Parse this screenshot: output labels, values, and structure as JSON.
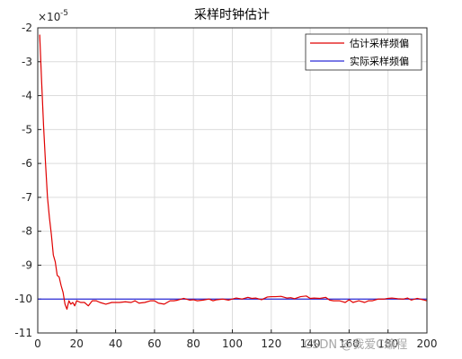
{
  "chart_data": {
    "type": "line",
    "title": "采样时钟估计",
    "xlabel": "",
    "ylabel": "",
    "xlim": [
      0,
      200
    ],
    "ylim": [
      -11,
      -2
    ],
    "y_exponent_label": "×10",
    "y_exponent_power": "-5",
    "x_ticks": [
      0,
      20,
      40,
      60,
      80,
      100,
      120,
      140,
      160,
      180,
      200
    ],
    "x_tick_labels": [
      "0",
      "20",
      "40",
      "60",
      "80",
      "100",
      "120",
      "140",
      "160",
      "180",
      "200"
    ],
    "y_ticks": [
      -2,
      -3,
      -4,
      -5,
      -6,
      -7,
      -8,
      -9,
      -10,
      -11
    ],
    "y_tick_labels": [
      "-2",
      "-3",
      "-4",
      "-5",
      "-6",
      "-7",
      "-8",
      "-9",
      "-10",
      "-11"
    ],
    "grid": true,
    "legend_position": "top-right",
    "series": [
      {
        "name": "估计采样频偏",
        "color": "#e00000",
        "x": [
          1,
          2,
          3,
          4,
          5,
          6,
          7,
          8,
          9,
          10,
          11,
          12,
          13,
          14,
          15,
          16,
          17,
          18,
          19,
          20,
          22,
          24,
          26,
          28,
          30,
          32,
          35,
          38,
          40,
          42,
          45,
          48,
          50,
          52,
          55,
          58,
          60,
          62,
          65,
          68,
          70,
          72,
          75,
          78,
          80,
          82,
          85,
          88,
          90,
          92,
          95,
          98,
          100,
          102,
          105,
          108,
          110,
          112,
          115,
          118,
          120,
          122,
          125,
          128,
          130,
          132,
          135,
          138,
          140,
          142,
          145,
          148,
          150,
          152,
          155,
          158,
          160,
          162,
          165,
          168,
          170,
          172,
          175,
          178,
          180,
          182,
          185,
          188,
          190,
          192,
          195,
          198,
          200
        ],
        "values": [
          -2.2,
          -3.6,
          -4.9,
          -6.0,
          -7.0,
          -7.6,
          -8.1,
          -8.7,
          -8.9,
          -9.3,
          -9.35,
          -9.6,
          -9.8,
          -10.15,
          -10.3,
          -10.05,
          -10.15,
          -10.1,
          -10.2,
          -10.05,
          -10.1,
          -10.1,
          -10.2,
          -10.05,
          -10.05,
          -10.1,
          -10.15,
          -10.1,
          -10.1,
          -10.1,
          -10.08,
          -10.1,
          -10.05,
          -10.12,
          -10.1,
          -10.05,
          -10.05,
          -10.12,
          -10.15,
          -10.05,
          -10.05,
          -10.03,
          -9.98,
          -10.03,
          -10.02,
          -10.05,
          -10.03,
          -10.0,
          -10.05,
          -10.02,
          -10.0,
          -10.03,
          -10.0,
          -9.97,
          -10.0,
          -9.95,
          -9.98,
          -9.97,
          -10.02,
          -9.94,
          -9.93,
          -9.93,
          -9.92,
          -9.97,
          -9.96,
          -9.99,
          -9.93,
          -9.91,
          -9.98,
          -9.97,
          -9.98,
          -9.95,
          -10.03,
          -10.05,
          -10.05,
          -10.1,
          -10.02,
          -10.1,
          -10.05,
          -10.1,
          -10.05,
          -10.05,
          -10.0,
          -10.0,
          -9.98,
          -9.97,
          -9.99,
          -10.0,
          -9.97,
          -10.03,
          -9.98,
          -10.02,
          -10.05
        ]
      },
      {
        "name": "实际采样频偏",
        "color": "#2b2bd6",
        "x": [
          0,
          200
        ],
        "values": [
          -10,
          -10
        ]
      }
    ]
  },
  "watermark": "CSDN @我爱C编程"
}
